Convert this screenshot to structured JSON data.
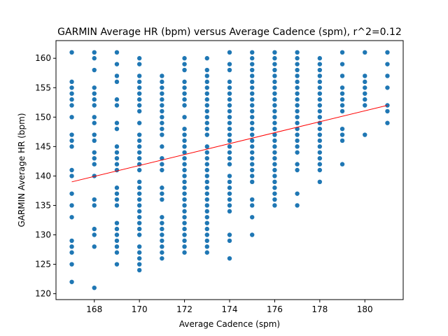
{
  "chart_data": {
    "type": "scatter",
    "title": "GARMIN Average HR (bpm) versus Average Cadence (spm), r^2=0.12",
    "xlabel": "Average Cadence (spm)",
    "ylabel": "GARMIN Average HR (bpm)",
    "xlim": [
      166.3,
      181.7
    ],
    "ylim": [
      119.0,
      163.0
    ],
    "xticks": [
      168,
      170,
      172,
      174,
      176,
      178,
      180
    ],
    "yticks": [
      120,
      125,
      130,
      135,
      140,
      145,
      150,
      155,
      160
    ],
    "grid": false,
    "marker_color": "#1f77b4",
    "fit_color": "#ff0000",
    "fit_line": {
      "x": [
        167,
        181
      ],
      "y": [
        139.0,
        152.0
      ]
    },
    "points": [
      {
        "x": 167,
        "y": [
          161,
          156,
          155,
          154,
          153,
          152,
          150,
          147,
          146,
          145,
          141,
          140,
          137,
          135,
          133,
          129,
          128,
          127,
          125,
          122
        ]
      },
      {
        "x": 168,
        "y": [
          161,
          160,
          158,
          155,
          154,
          153,
          152,
          150,
          149,
          147,
          146,
          144,
          143,
          142,
          140,
          136,
          135,
          131,
          130,
          128,
          121
        ]
      },
      {
        "x": 169,
        "y": [
          161,
          159,
          157,
          156,
          153,
          152,
          149,
          148,
          145,
          144,
          143,
          142,
          141,
          138,
          137,
          136,
          135,
          132,
          131,
          130,
          129,
          128,
          127,
          125
        ]
      },
      {
        "x": 170,
        "y": [
          160,
          159,
          157,
          156,
          155,
          154,
          153,
          152,
          151,
          149,
          147,
          146,
          145,
          144,
          143,
          142,
          141,
          139,
          138,
          137,
          136,
          135,
          134,
          133,
          132,
          131,
          130,
          128,
          127,
          126,
          125,
          124
        ]
      },
      {
        "x": 171,
        "y": [
          157,
          156,
          155,
          154,
          153,
          152,
          151,
          150,
          149,
          148,
          147,
          145,
          143,
          142,
          141,
          138,
          137,
          136,
          133,
          132,
          131,
          130,
          129,
          128,
          127,
          126
        ]
      },
      {
        "x": 172,
        "y": [
          160,
          159,
          158,
          156,
          155,
          154,
          153,
          152,
          150,
          148,
          147,
          146,
          145,
          144,
          143,
          142,
          141,
          140,
          139,
          138,
          137,
          136,
          135,
          134,
          133,
          132,
          131,
          130,
          129,
          128,
          127
        ]
      },
      {
        "x": 173,
        "y": [
          160,
          158,
          157,
          156,
          155,
          154,
          153,
          152,
          151,
          150,
          149,
          148,
          147,
          145,
          144,
          143,
          142,
          141,
          140,
          139,
          138,
          137,
          136,
          135,
          134,
          133,
          132,
          131,
          130,
          129,
          128,
          127
        ]
      },
      {
        "x": 174,
        "y": [
          161,
          159,
          158,
          156,
          155,
          154,
          153,
          152,
          151,
          150,
          149,
          148,
          147,
          146,
          145,
          144,
          143,
          142,
          140,
          139,
          138,
          137,
          136,
          135,
          134,
          130,
          129,
          126
        ]
      },
      {
        "x": 175,
        "y": [
          161,
          160,
          159,
          158,
          157,
          156,
          155,
          154,
          153,
          152,
          151,
          150,
          149,
          148,
          147,
          146,
          145,
          144,
          143,
          142,
          141,
          140,
          139,
          136,
          135,
          133,
          130
        ]
      },
      {
        "x": 176,
        "y": [
          161,
          160,
          159,
          158,
          157,
          156,
          155,
          154,
          153,
          152,
          151,
          150,
          149,
          148,
          147,
          146,
          145,
          144,
          143,
          142,
          141,
          140,
          139,
          138,
          137,
          136,
          135
        ]
      },
      {
        "x": 177,
        "y": [
          161,
          160,
          159,
          158,
          157,
          156,
          155,
          154,
          153,
          152,
          151,
          150,
          149,
          148,
          147,
          146,
          145,
          144,
          142,
          141,
          137,
          135
        ]
      },
      {
        "x": 178,
        "y": [
          160,
          159,
          158,
          157,
          156,
          155,
          154,
          153,
          152,
          151,
          150,
          149,
          148,
          147,
          146,
          145,
          144,
          143,
          142,
          141,
          139
        ]
      },
      {
        "x": 179,
        "y": [
          161,
          159,
          157,
          155,
          154,
          153,
          152,
          151,
          148,
          147,
          146,
          142
        ]
      },
      {
        "x": 180,
        "y": [
          161,
          157,
          156,
          155,
          154,
          153,
          152,
          147
        ]
      },
      {
        "x": 181,
        "y": [
          161,
          159,
          157,
          155,
          152,
          151,
          149
        ]
      }
    ]
  }
}
